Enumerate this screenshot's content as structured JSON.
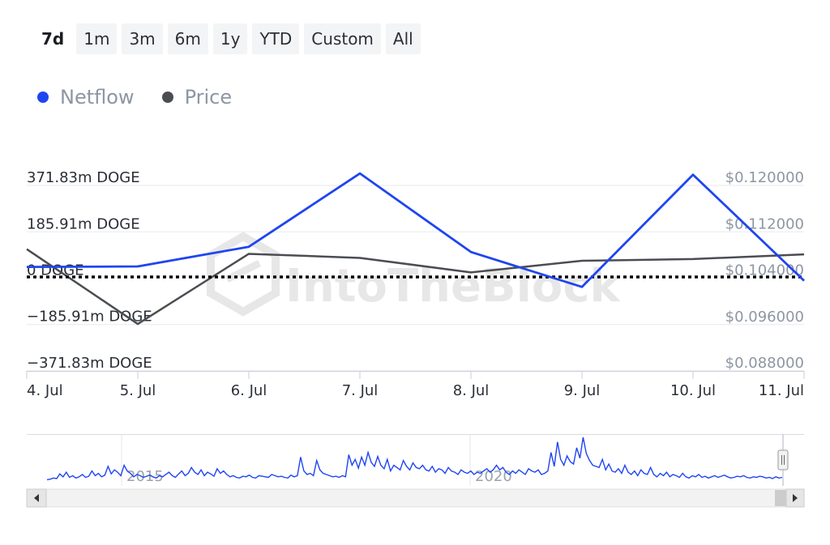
{
  "range_selector": {
    "buttons": [
      "7d",
      "1m",
      "3m",
      "6m",
      "1y",
      "YTD",
      "Custom",
      "All"
    ],
    "active": "7d"
  },
  "colors": {
    "netflow": "#1f45f0",
    "price": "#4a4d52",
    "grid": "#e8eaee",
    "left_axis_text": "#2b2f36",
    "right_axis_text": "#8d96a3",
    "zero_line": "#000000"
  },
  "watermark": "IntoTheBlock",
  "chart_data": {
    "type": "line",
    "categories": [
      "4. Jul",
      "5. Jul",
      "6. Jul",
      "7. Jul",
      "8. Jul",
      "9. Jul",
      "10. Jul",
      "11. Jul"
    ],
    "x_ticks": [
      "4. Jul",
      "5. Jul",
      "6. Jul",
      "7. Jul",
      "8. Jul",
      "9. Jul",
      "10. Jul",
      "11. Jul"
    ],
    "series": [
      {
        "name": "Netflow",
        "axis": "left",
        "unit": "DOGE",
        "values": [
          45,
          47,
          126,
          420,
          105,
          -35,
          415,
          -10
        ]
      },
      {
        "name": "Price",
        "axis": "right",
        "unit": "USD",
        "values": [
          0.109,
          0.0961,
          0.1082,
          0.1075,
          0.105,
          0.107,
          0.1073,
          0.1081
        ]
      }
    ],
    "y_left": {
      "ticks": [
        "371.83m DOGE",
        "185.91m DOGE",
        "0 DOGE",
        "−185.91m DOGE",
        "−371.83m DOGE"
      ],
      "values": [
        371.83,
        185.91,
        0,
        -185.91,
        -371.83
      ]
    },
    "y_right": {
      "ticks": [
        "$0.120000",
        "$0.112000",
        "$0.104000",
        "$0.096000",
        "$0.088000"
      ],
      "values": [
        0.12,
        0.112,
        0.104,
        0.096,
        0.088
      ]
    },
    "grid": true,
    "zero_line": "dotted",
    "legend_placement": "top-left"
  },
  "navigator": {
    "year_labels": [
      "2015",
      "2020"
    ],
    "values": [
      5,
      6,
      8,
      7,
      15,
      10,
      18,
      9,
      12,
      8,
      10,
      14,
      9,
      11,
      20,
      12,
      16,
      10,
      13,
      28,
      15,
      22,
      18,
      12,
      30,
      20,
      16,
      10,
      14,
      12,
      9,
      11,
      13,
      10,
      8,
      12,
      10,
      14,
      18,
      12,
      9,
      15,
      20,
      12,
      16,
      26,
      18,
      14,
      22,
      12,
      18,
      15,
      11,
      24,
      16,
      20,
      14,
      10,
      12,
      9,
      8,
      11,
      10,
      13,
      9,
      8,
      12,
      11,
      10,
      9,
      14,
      12,
      10,
      11,
      9,
      8,
      13,
      10,
      12,
      44,
      20,
      14,
      16,
      12,
      38,
      22,
      16,
      14,
      12,
      10,
      11,
      9,
      12,
      10,
      48,
      30,
      40,
      25,
      44,
      30,
      52,
      35,
      28,
      45,
      30,
      24,
      40,
      20,
      30,
      26,
      22,
      38,
      28,
      22,
      34,
      26,
      24,
      30,
      22,
      20,
      28,
      18,
      24,
      22,
      16,
      26,
      20,
      18,
      14,
      22,
      18,
      16,
      20,
      14,
      18,
      16,
      20,
      24,
      18,
      22,
      30,
      22,
      26,
      18,
      14,
      20,
      16,
      22,
      18,
      14,
      24,
      20,
      18,
      22,
      14,
      16,
      20,
      52,
      28,
      70,
      40,
      30,
      46,
      36,
      32,
      60,
      42,
      78,
      50,
      38,
      30,
      28,
      26,
      40,
      22,
      32,
      20,
      18,
      24,
      16,
      30,
      18,
      14,
      20,
      12,
      22,
      16,
      14,
      26,
      14,
      10,
      16,
      12,
      18,
      10,
      14,
      12,
      9,
      16,
      10,
      8,
      12,
      10,
      14,
      9,
      11,
      8,
      10,
      12,
      9,
      11,
      13,
      10,
      8,
      9,
      11,
      10,
      12,
      9,
      8,
      10,
      9,
      11,
      10,
      8,
      9,
      7,
      10,
      8,
      9
    ]
  }
}
